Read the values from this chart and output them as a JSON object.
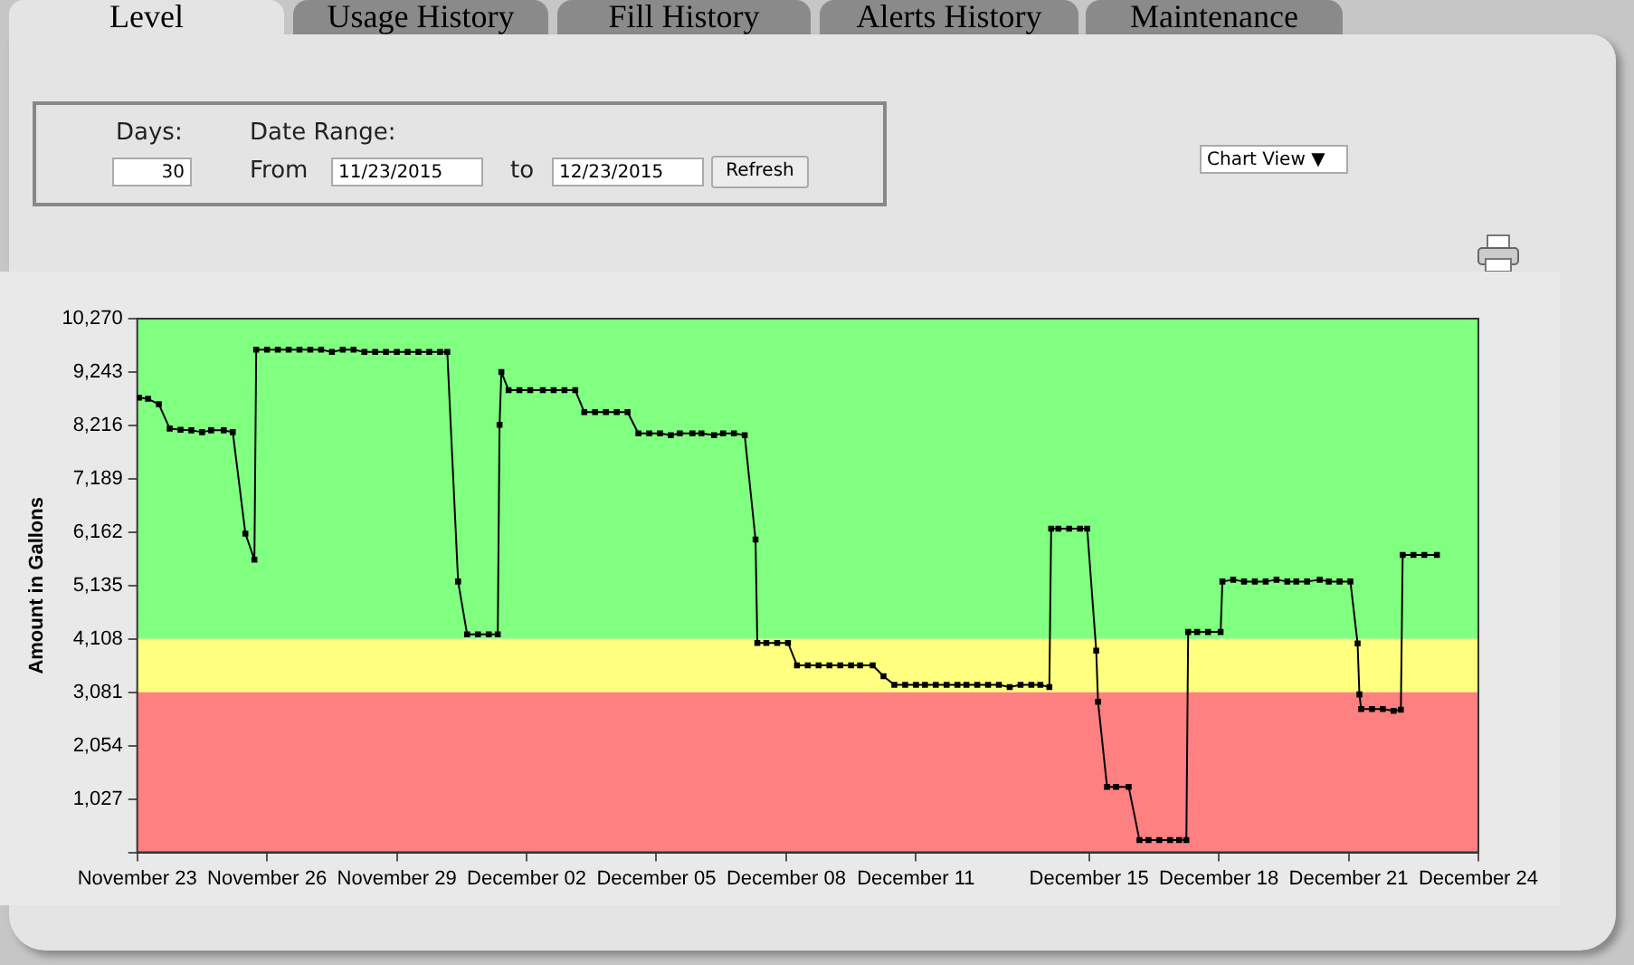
{
  "chart_data": {
    "type": "line",
    "ylabel": "Amount in Gallons",
    "marker": "square",
    "line_style": "solid",
    "grid": false,
    "legend": false,
    "annotations": [
      "Level",
      "Usage History",
      "Fill History",
      "Alerts History",
      "Maintenance",
      "Days:",
      "30",
      "Date Range:",
      "From",
      "11/23/2015",
      "to",
      "12/23/2015",
      "Refresh",
      "Chart View ▼"
    ],
    "xlim": [
      "2015-11-23T00:00",
      "2015-12-24T00:00"
    ],
    "xticks": [
      {
        "value": "2015-11-23",
        "label": "November 23"
      },
      {
        "value": "2015-11-26",
        "label": "November 26"
      },
      {
        "value": "2015-11-29",
        "label": "November 29"
      },
      {
        "value": "2015-12-02",
        "label": "December 02"
      },
      {
        "value": "2015-12-05",
        "label": "December 05"
      },
      {
        "value": "2015-12-08",
        "label": "December 08"
      },
      {
        "value": "2015-12-11",
        "label": "December 11"
      },
      {
        "value": "2015-12-15",
        "label": "December 15"
      },
      {
        "value": "2015-12-18",
        "label": "December 18"
      },
      {
        "value": "2015-12-21",
        "label": "December 21"
      },
      {
        "value": "2015-12-24",
        "label": "December 24"
      }
    ],
    "ylim": [
      0,
      10270
    ],
    "yticks": [
      {
        "value": 0,
        "label": null
      },
      {
        "value": 1027,
        "label": "1,027"
      },
      {
        "value": 2054,
        "label": "2,054"
      },
      {
        "value": 3081,
        "label": "3,081"
      },
      {
        "value": 4108,
        "label": "4,108"
      },
      {
        "value": 5135,
        "label": "5,135"
      },
      {
        "value": 6162,
        "label": "6,162"
      },
      {
        "value": 7189,
        "label": "7,189"
      },
      {
        "value": 8216,
        "label": "8,216"
      },
      {
        "value": 9243,
        "label": "9,243"
      },
      {
        "value": 10270,
        "label": "10,270"
      }
    ],
    "bands": [
      {
        "axis": "y",
        "from": 4108,
        "to": 10270,
        "color": "#80ff80"
      },
      {
        "axis": "y",
        "from": 3081,
        "to": 4108,
        "color": "#ffff80"
      },
      {
        "axis": "y",
        "from": 0,
        "to": 3081,
        "color": "#ff8080"
      }
    ],
    "series": [
      {
        "color": "#000000",
        "x": [
          "2015-11-23T01:00",
          "2015-11-23T06:00",
          "2015-11-23T12:00",
          "2015-11-23T18:00",
          "2015-11-24T00:00",
          "2015-11-24T06:00",
          "2015-11-24T12:00",
          "2015-11-24T17:00",
          "2015-11-25T00:00",
          "2015-11-25T05:00",
          "2015-11-25T12:00",
          "2015-11-25T17:00",
          "2015-11-25T18:00",
          "2015-11-26T00:00",
          "2015-11-26T06:00",
          "2015-11-26T12:00",
          "2015-11-26T18:00",
          "2015-11-27T00:00",
          "2015-11-27T06:00",
          "2015-11-27T12:00",
          "2015-11-27T18:00",
          "2015-11-28T00:00",
          "2015-11-28T06:00",
          "2015-11-28T12:00",
          "2015-11-28T18:00",
          "2015-11-29T00:00",
          "2015-11-29T06:00",
          "2015-11-29T12:00",
          "2015-11-29T18:00",
          "2015-11-30T00:00",
          "2015-11-30T04:00",
          "2015-11-30T10:00",
          "2015-11-30T15:00",
          "2015-11-30T21:00",
          "2015-12-01T03:00",
          "2015-12-01T08:00",
          "2015-12-01T09:00",
          "2015-12-01T10:00",
          "2015-12-01T14:00",
          "2015-12-01T20:00",
          "2015-12-02T02:00",
          "2015-12-02T09:00",
          "2015-12-02T15:00",
          "2015-12-02T21:00",
          "2015-12-03T03:00",
          "2015-12-03T08:00",
          "2015-12-03T14:00",
          "2015-12-03T20:00",
          "2015-12-04T02:00",
          "2015-12-04T08:00",
          "2015-12-04T14:00",
          "2015-12-04T20:00",
          "2015-12-05T02:00",
          "2015-12-05T08:00",
          "2015-12-05T13:00",
          "2015-12-05T20:00",
          "2015-12-06T01:00",
          "2015-12-06T08:00",
          "2015-12-06T13:00",
          "2015-12-06T19:00",
          "2015-12-07T01:00",
          "2015-12-07T07:00",
          "2015-12-07T08:00",
          "2015-12-07T13:00",
          "2015-12-07T19:00",
          "2015-12-08T01:00",
          "2015-12-08T06:00",
          "2015-12-08T12:00",
          "2015-12-08T18:00",
          "2015-12-09T00:00",
          "2015-12-09T06:00",
          "2015-12-09T12:00",
          "2015-12-09T17:00",
          "2015-12-10T00:00",
          "2015-12-10T06:00",
          "2015-12-10T12:00",
          "2015-12-10T18:00",
          "2015-12-11T00:00",
          "2015-12-11T05:00",
          "2015-12-11T11:00",
          "2015-12-11T17:00",
          "2015-12-11T23:00",
          "2015-12-12T04:00",
          "2015-12-12T10:00",
          "2015-12-12T16:00",
          "2015-12-12T22:00",
          "2015-12-13T04:00",
          "2015-12-13T10:00",
          "2015-12-13T16:00",
          "2015-12-13T21:00",
          "2015-12-14T02:00",
          "2015-12-14T03:00",
          "2015-12-14T07:00",
          "2015-12-14T13:00",
          "2015-12-14T19:00",
          "2015-12-14T23:00",
          "2015-12-15T04:00",
          "2015-12-15T05:00",
          "2015-12-15T10:00",
          "2015-12-15T15:00",
          "2015-12-15T22:00",
          "2015-12-16T04:00",
          "2015-12-16T09:00",
          "2015-12-16T15:00",
          "2015-12-16T21:00",
          "2015-12-17T02:00",
          "2015-12-17T06:00",
          "2015-12-17T07:00",
          "2015-12-17T12:00",
          "2015-12-17T18:00",
          "2015-12-18T01:00",
          "2015-12-18T02:00",
          "2015-12-18T08:00",
          "2015-12-18T14:00",
          "2015-12-18T20:00",
          "2015-12-19T02:00",
          "2015-12-19T08:00",
          "2015-12-19T14:00",
          "2015-12-19T19:00",
          "2015-12-20T01:00",
          "2015-12-20T08:00",
          "2015-12-20T13:00",
          "2015-12-20T19:00",
          "2015-12-21T01:00",
          "2015-12-21T05:00",
          "2015-12-21T06:00",
          "2015-12-21T07:00",
          "2015-12-21T13:00",
          "2015-12-21T19:00",
          "2015-12-22T01:00",
          "2015-12-22T05:00",
          "2015-12-22T06:00",
          "2015-12-22T12:00",
          "2015-12-22T18:00",
          "2015-12-23T01:00"
        ],
        "values": [
          8752,
          8727,
          8622,
          8156,
          8131,
          8121,
          8086,
          8121,
          8121,
          8086,
          6134,
          5632,
          9674,
          9674,
          9674,
          9674,
          9674,
          9674,
          9674,
          9628,
          9674,
          9674,
          9628,
          9628,
          9628,
          9628,
          9628,
          9628,
          9628,
          9628,
          9628,
          5212,
          4195,
          4195,
          4195,
          4195,
          8226,
          9243,
          8892,
          8892,
          8892,
          8892,
          8892,
          8892,
          8892,
          8471,
          8471,
          8471,
          8471,
          8471,
          8062,
          8062,
          8062,
          8027,
          8062,
          8062,
          8062,
          8027,
          8062,
          8062,
          8027,
          6018,
          4031,
          4031,
          4031,
          4031,
          3600,
          3600,
          3600,
          3600,
          3600,
          3600,
          3600,
          3600,
          3389,
          3225,
          3225,
          3225,
          3225,
          3225,
          3225,
          3225,
          3225,
          3225,
          3225,
          3225,
          3179,
          3225,
          3225,
          3225,
          3179,
          6228,
          6228,
          6228,
          6228,
          6228,
          3880,
          2899,
          1262,
          1262,
          1262,
          235,
          235,
          235,
          235,
          235,
          235,
          4241,
          4241,
          4241,
          4241,
          5212,
          5247,
          5212,
          5212,
          5212,
          5247,
          5212,
          5212,
          5212,
          5247,
          5212,
          5212,
          5212,
          4020,
          3039,
          2758,
          2758,
          2758,
          2723,
          2747,
          5724,
          5724,
          5724,
          5724
        ]
      }
    ]
  }
}
